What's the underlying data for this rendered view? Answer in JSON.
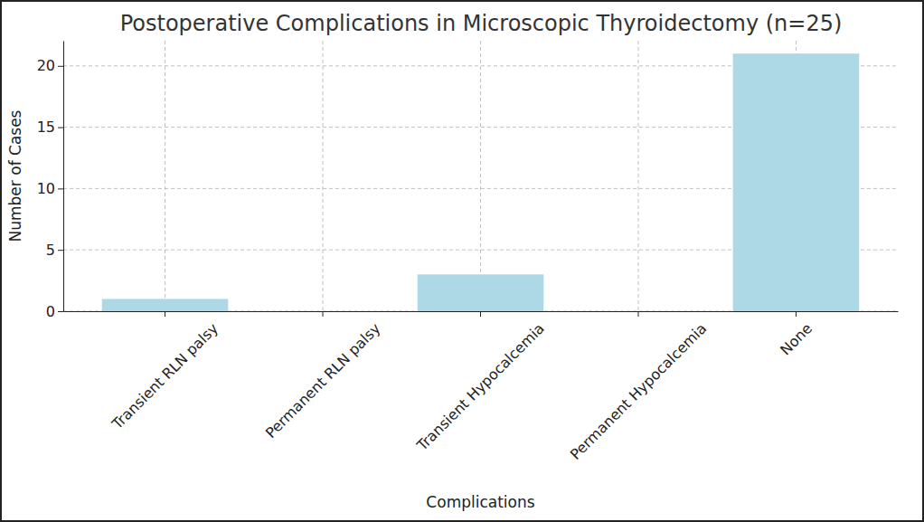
{
  "chart_data": {
    "type": "bar",
    "title": "Postoperative Complications in Microscopic Thyroidectomy (n=25)",
    "x_label": "Complications",
    "y_label": "Number of Cases",
    "categories": [
      "Transient RLN palsy",
      "Permanent RLN palsy",
      "Transient Hypocalcemia",
      "Permanent Hypocalcemia",
      "None"
    ],
    "values": [
      1,
      0,
      3,
      0,
      21
    ],
    "color": "#add8e6",
    "ylim": [
      0,
      22.05
    ],
    "yticks": [
      0,
      5,
      10,
      15,
      20
    ],
    "grid": true
  }
}
